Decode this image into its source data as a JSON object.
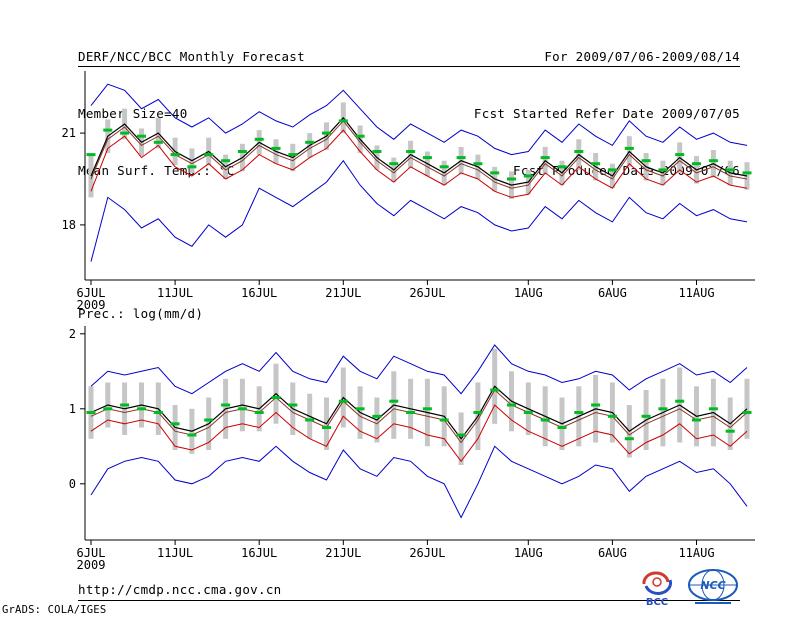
{
  "header": {
    "left": [
      "DERF/NCC/BCC Monthly Forecast",
      "Member Size=40",
      "Mean Surf. Temp.: °C"
    ],
    "right": [
      "For 2009/07/06-2009/08/14",
      "Fcst Started Refer Date 2009/07/05",
      "Fcst Produced Date 2009/07/06"
    ]
  },
  "second_panel_label": "Prec.: log(mm/d)",
  "footer": {
    "url": "http://cmdp.ncc.cma.gov.cn",
    "logos": [
      {
        "label": "BCC"
      },
      {
        "label": "NCC"
      }
    ],
    "credit": "GrADS: COLA/IGES"
  },
  "chart_data": [
    {
      "type": "line",
      "title": "Mean Surf. Temp.: °C",
      "xlabel": "",
      "ylabel": "°C",
      "n_points": 40,
      "x_start_date": "2009/07/06",
      "x_end_date": "2009/08/14",
      "x_tick_indices": [
        0,
        5,
        10,
        15,
        20,
        26,
        31,
        36
      ],
      "x_tick_labels": [
        [
          "6JUL",
          "2009"
        ],
        [
          "11JUL"
        ],
        [
          "16JUL"
        ],
        [
          "21JUL"
        ],
        [
          "26JUL"
        ],
        [
          "1AUG"
        ],
        [
          "6AUG"
        ],
        [
          "11AUG"
        ]
      ],
      "ylim": [
        16.2,
        22.9
      ],
      "yticks": [
        18,
        21
      ],
      "grid": false,
      "legend": "none",
      "series": [
        {
          "name": "ensemble-max",
          "color": "#0000cc",
          "width": 1,
          "values": [
            21.9,
            22.6,
            22.4,
            21.8,
            22.1,
            21.5,
            21.2,
            21.5,
            21.0,
            21.3,
            21.7,
            21.4,
            21.2,
            21.6,
            21.9,
            22.4,
            21.8,
            21.2,
            20.8,
            21.3,
            21.0,
            20.7,
            21.1,
            20.9,
            20.5,
            20.3,
            20.4,
            21.1,
            20.7,
            21.3,
            20.9,
            20.6,
            21.4,
            20.9,
            20.7,
            21.2,
            20.8,
            21.0,
            20.7,
            20.6
          ]
        },
        {
          "name": "ensemble-min",
          "color": "#0000cc",
          "width": 1,
          "values": [
            16.8,
            18.9,
            18.5,
            17.9,
            18.2,
            17.6,
            17.3,
            18.0,
            17.6,
            18.0,
            19.2,
            18.9,
            18.6,
            19.0,
            19.4,
            20.1,
            19.3,
            18.7,
            18.3,
            18.8,
            18.5,
            18.2,
            18.6,
            18.4,
            18.0,
            17.8,
            17.9,
            18.6,
            18.2,
            18.8,
            18.4,
            18.1,
            18.9,
            18.4,
            18.2,
            18.7,
            18.3,
            18.5,
            18.2,
            18.1
          ]
        },
        {
          "name": "control-run",
          "color": "#cc0000",
          "width": 1,
          "values": [
            19.1,
            20.5,
            20.9,
            20.2,
            20.6,
            19.9,
            19.6,
            20.0,
            19.5,
            19.8,
            20.3,
            20.0,
            19.8,
            20.2,
            20.5,
            21.1,
            20.4,
            19.8,
            19.4,
            19.9,
            19.6,
            19.3,
            19.7,
            19.5,
            19.1,
            18.9,
            19.0,
            19.7,
            19.3,
            19.9,
            19.5,
            19.2,
            20.0,
            19.5,
            19.3,
            19.8,
            19.4,
            19.6,
            19.3,
            19.2
          ]
        },
        {
          "name": "ensemble-median",
          "color": "#8b3626",
          "width": 1,
          "values": [
            19.5,
            20.8,
            21.2,
            20.6,
            20.9,
            20.3,
            20.0,
            20.3,
            19.8,
            20.1,
            20.6,
            20.3,
            20.1,
            20.5,
            20.8,
            21.4,
            20.7,
            20.1,
            19.7,
            20.2,
            19.9,
            19.6,
            20.0,
            19.8,
            19.4,
            19.2,
            19.3,
            20.0,
            19.6,
            20.2,
            19.8,
            19.5,
            20.3,
            19.8,
            19.6,
            20.1,
            19.7,
            19.9,
            19.6,
            19.5
          ]
        },
        {
          "name": "ensemble-mean",
          "color": "#000000",
          "width": 1.2,
          "values": [
            19.6,
            20.9,
            21.3,
            20.7,
            21.0,
            20.4,
            20.1,
            20.4,
            19.9,
            20.2,
            20.7,
            20.4,
            20.2,
            20.6,
            20.9,
            21.5,
            20.8,
            20.2,
            19.8,
            20.3,
            20.0,
            19.7,
            20.1,
            19.9,
            19.5,
            19.3,
            19.4,
            20.1,
            19.7,
            20.3,
            19.9,
            19.6,
            20.4,
            19.9,
            19.7,
            20.2,
            19.8,
            20.0,
            19.7,
            19.6
          ]
        }
      ],
      "bars": {
        "name": "ensemble-spread",
        "color": "#c6c6c6",
        "half_widths": [
          0.7,
          0.55,
          0.5,
          0.45,
          0.5,
          0.45,
          0.4,
          0.45,
          0.4,
          0.45,
          0.4,
          0.4,
          0.45,
          0.4,
          0.45,
          0.5,
          0.45,
          0.4,
          0.4,
          0.45,
          0.4,
          0.4,
          0.45,
          0.4,
          0.4,
          0.45,
          0.4,
          0.45,
          0.4,
          0.5,
          0.45,
          0.4,
          0.5,
          0.45,
          0.4,
          0.5,
          0.45,
          0.45,
          0.4,
          0.45
        ]
      },
      "markers": {
        "name": "observation",
        "color": "#00bb22",
        "values": [
          20.3,
          21.1,
          21.0,
          20.9,
          20.7,
          20.3,
          19.9,
          20.3,
          20.1,
          20.4,
          20.8,
          20.5,
          20.3,
          20.7,
          21.0,
          21.4,
          20.9,
          20.4,
          20.0,
          20.4,
          20.2,
          19.9,
          20.2,
          20.0,
          19.7,
          19.5,
          19.6,
          20.2,
          19.9,
          20.4,
          20.0,
          19.8,
          20.5,
          20.1,
          19.8,
          20.3,
          20.0,
          20.1,
          19.8,
          19.7
        ]
      }
    },
    {
      "type": "line",
      "title": "Prec.: log(mm/d)",
      "xlabel": "",
      "ylabel": "log(mm/d)",
      "n_points": 40,
      "x_start_date": "2009/07/06",
      "x_end_date": "2009/08/14",
      "x_tick_indices": [
        0,
        5,
        10,
        15,
        20,
        26,
        31,
        36
      ],
      "x_tick_labels": [
        [
          "6JUL",
          "2009"
        ],
        [
          "11JUL"
        ],
        [
          "16JUL"
        ],
        [
          "21JUL"
        ],
        [
          "26JUL"
        ],
        [
          "1AUG"
        ],
        [
          "6AUG"
        ],
        [
          "11AUG"
        ]
      ],
      "ylim": [
        -0.75,
        2.05
      ],
      "yticks": [
        0,
        1,
        2
      ],
      "grid": false,
      "legend": "none",
      "series": [
        {
          "name": "ensemble-max",
          "color": "#0000cc",
          "width": 1,
          "values": [
            1.3,
            1.5,
            1.45,
            1.5,
            1.55,
            1.3,
            1.2,
            1.35,
            1.5,
            1.6,
            1.5,
            1.75,
            1.5,
            1.4,
            1.35,
            1.7,
            1.5,
            1.4,
            1.7,
            1.6,
            1.5,
            1.45,
            1.2,
            1.5,
            1.85,
            1.6,
            1.5,
            1.45,
            1.35,
            1.4,
            1.5,
            1.45,
            1.25,
            1.4,
            1.5,
            1.6,
            1.45,
            1.5,
            1.35,
            1.55
          ]
        },
        {
          "name": "ensemble-min",
          "color": "#0000cc",
          "width": 1,
          "values": [
            -0.15,
            0.2,
            0.3,
            0.35,
            0.3,
            0.05,
            0.0,
            0.1,
            0.3,
            0.35,
            0.3,
            0.5,
            0.3,
            0.15,
            0.05,
            0.45,
            0.2,
            0.1,
            0.35,
            0.3,
            0.1,
            0.0,
            -0.45,
            0.0,
            0.5,
            0.3,
            0.2,
            0.1,
            0.0,
            0.1,
            0.25,
            0.2,
            -0.1,
            0.1,
            0.2,
            0.3,
            0.15,
            0.2,
            0.0,
            -0.3
          ]
        },
        {
          "name": "control-run",
          "color": "#cc0000",
          "width": 1,
          "values": [
            0.7,
            0.85,
            0.8,
            0.85,
            0.8,
            0.5,
            0.45,
            0.55,
            0.75,
            0.8,
            0.75,
            0.95,
            0.75,
            0.6,
            0.5,
            0.9,
            0.7,
            0.6,
            0.8,
            0.75,
            0.65,
            0.6,
            0.3,
            0.6,
            1.05,
            0.85,
            0.7,
            0.6,
            0.5,
            0.6,
            0.7,
            0.65,
            0.4,
            0.55,
            0.65,
            0.8,
            0.6,
            0.65,
            0.5,
            0.7
          ]
        },
        {
          "name": "ensemble-median",
          "color": "#8b3626",
          "width": 1,
          "values": [
            0.9,
            1.0,
            0.95,
            1.0,
            0.95,
            0.7,
            0.65,
            0.75,
            0.95,
            1.0,
            0.95,
            1.15,
            0.95,
            0.85,
            0.75,
            1.1,
            0.9,
            0.8,
            1.0,
            0.95,
            0.9,
            0.85,
            0.55,
            0.85,
            1.25,
            1.05,
            0.95,
            0.85,
            0.75,
            0.85,
            0.95,
            0.9,
            0.65,
            0.8,
            0.9,
            1.0,
            0.85,
            0.9,
            0.75,
            0.95
          ]
        },
        {
          "name": "ensemble-mean",
          "color": "#000000",
          "width": 1.2,
          "values": [
            0.95,
            1.05,
            1.0,
            1.05,
            1.0,
            0.75,
            0.7,
            0.8,
            1.0,
            1.05,
            1.0,
            1.2,
            1.0,
            0.9,
            0.8,
            1.15,
            0.95,
            0.85,
            1.05,
            1.0,
            0.95,
            0.9,
            0.6,
            0.9,
            1.3,
            1.1,
            1.0,
            0.9,
            0.8,
            0.9,
            1.0,
            0.95,
            0.7,
            0.85,
            0.95,
            1.05,
            0.9,
            0.95,
            0.8,
            1.0
          ]
        }
      ],
      "bars": {
        "name": "ensemble-spread",
        "color": "#c6c6c6",
        "half_widths": [
          0.35,
          0.3,
          0.35,
          0.3,
          0.35,
          0.3,
          0.3,
          0.35,
          0.4,
          0.35,
          0.3,
          0.4,
          0.35,
          0.3,
          0.35,
          0.4,
          0.35,
          0.3,
          0.45,
          0.4,
          0.45,
          0.4,
          0.35,
          0.45,
          0.5,
          0.4,
          0.35,
          0.4,
          0.35,
          0.4,
          0.45,
          0.4,
          0.35,
          0.4,
          0.45,
          0.5,
          0.4,
          0.45,
          0.35,
          0.4
        ]
      },
      "markers": {
        "name": "observation",
        "color": "#00bb22",
        "values": [
          0.95,
          1.0,
          1.05,
          1.0,
          0.95,
          0.8,
          0.65,
          0.85,
          1.05,
          1.0,
          0.95,
          1.15,
          1.05,
          0.85,
          0.75,
          1.1,
          1.0,
          0.9,
          1.1,
          0.95,
          1.0,
          0.85,
          0.65,
          0.95,
          1.25,
          1.05,
          0.95,
          0.85,
          0.75,
          0.95,
          1.05,
          0.9,
          0.6,
          0.9,
          1.0,
          1.1,
          0.85,
          1.0,
          0.7,
          0.95
        ]
      }
    }
  ]
}
